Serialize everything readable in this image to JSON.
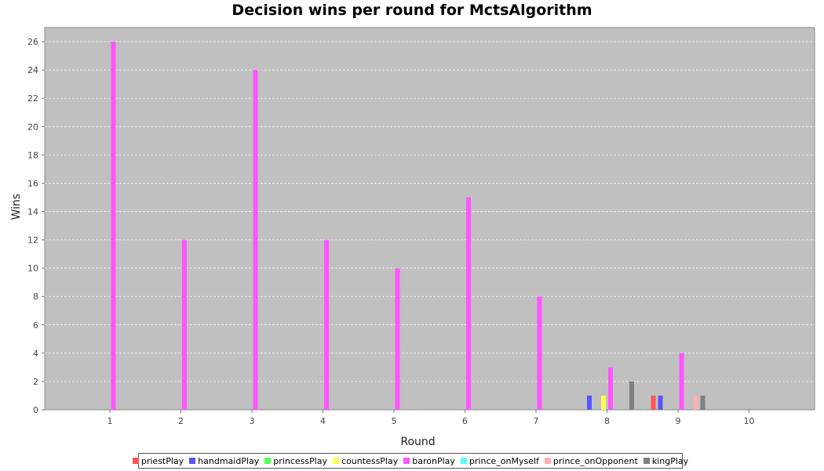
{
  "chart_data": {
    "type": "bar",
    "title": "Decision wins per round for MctsAlgorithm",
    "xlabel": "Round",
    "ylabel": "Wins",
    "ylim": [
      0,
      27
    ],
    "yticks": [
      0,
      2,
      4,
      6,
      8,
      10,
      12,
      14,
      16,
      18,
      20,
      22,
      24,
      26
    ],
    "grid": true,
    "legend_position": "bottom",
    "categories": [
      "1",
      "2",
      "3",
      "4",
      "5",
      "6",
      "7",
      "8",
      "9",
      "10"
    ],
    "series": [
      {
        "name": "priestPlay",
        "color": "#ff5555",
        "values": [
          0,
          0,
          0,
          0,
          0,
          0,
          0,
          0,
          1,
          0
        ]
      },
      {
        "name": "handmaidPlay",
        "color": "#5555ff",
        "values": [
          0,
          0,
          0,
          0,
          0,
          0,
          0,
          1,
          1,
          0
        ]
      },
      {
        "name": "princessPlay",
        "color": "#55ff55",
        "values": [
          0,
          0,
          0,
          0,
          0,
          0,
          0,
          0,
          0,
          0
        ]
      },
      {
        "name": "countessPlay",
        "color": "#ffff55",
        "values": [
          0,
          0,
          0,
          0,
          0,
          0,
          0,
          1,
          0,
          0
        ]
      },
      {
        "name": "baronPlay",
        "color": "#ff55ff",
        "values": [
          26,
          12,
          24,
          12,
          10,
          15,
          8,
          3,
          4,
          0
        ]
      },
      {
        "name": "prince_onMyself",
        "color": "#55ffff",
        "values": [
          0,
          0,
          0,
          0,
          0,
          0,
          0,
          0,
          0,
          0
        ]
      },
      {
        "name": "prince_onOpponent",
        "color": "#ffafaf",
        "values": [
          0,
          0,
          0,
          0,
          0,
          0,
          0,
          0,
          1,
          0
        ]
      },
      {
        "name": "kingPlay",
        "color": "#808080",
        "values": [
          0,
          0,
          0,
          0,
          0,
          0,
          0,
          2,
          1,
          0
        ]
      }
    ]
  },
  "colors": {
    "plot_background": "#c0c0c0",
    "gridline": "#ffffff"
  }
}
